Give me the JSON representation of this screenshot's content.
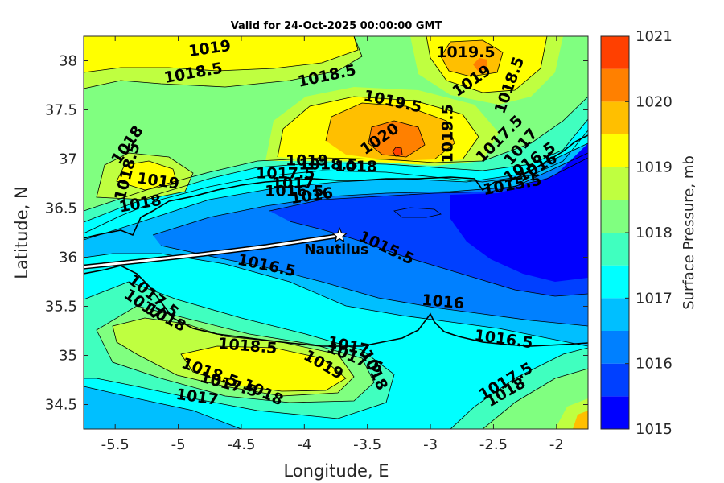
{
  "chart_data": {
    "type": "heatmap",
    "title": "Valid for 24-Oct-2025 00:00:00 GMT",
    "xlabel": "Longitude, E",
    "ylabel": "Latitude, N",
    "colorbar_label": "Surface Pressure, mb",
    "xlim": [
      -5.75,
      -1.75
    ],
    "ylim": [
      34.25,
      38.25
    ],
    "x_ticks": [
      -5.5,
      -5,
      -4.5,
      -4,
      -3.5,
      -3,
      -2.5,
      -2
    ],
    "x_tick_labels": [
      "-5.5",
      "-5",
      "-4.5",
      "-4",
      "-3.5",
      "-3",
      "-2.5",
      "-2"
    ],
    "y_ticks": [
      34.5,
      35,
      35.5,
      36,
      36.5,
      37,
      37.5,
      38
    ],
    "y_tick_labels": [
      "34.5",
      "35",
      "35.5",
      "36",
      "36.5",
      "37",
      "37.5",
      "38"
    ],
    "colorbar_range": [
      1015,
      1021
    ],
    "colorbar_levels": [
      1015,
      1015.5,
      1016,
      1016.5,
      1017,
      1017.5,
      1018,
      1018.5,
      1019,
      1019.5,
      1020,
      1020.5,
      1021
    ],
    "colorbar_colors": [
      "#0000ff",
      "#0040ff",
      "#0080ff",
      "#00bfff",
      "#00ffff",
      "#40ffbf",
      "#80ff80",
      "#bfff40",
      "#ffff00",
      "#ffbf00",
      "#ff8000",
      "#ff4000"
    ],
    "colorbar_tick_labels": [
      "1015",
      "1016",
      "1017",
      "1018",
      "1019",
      "1020",
      "1021"
    ],
    "colorbar_ticks": [
      1015,
      1016,
      1017,
      1018,
      1019,
      1020,
      1021
    ],
    "marker": {
      "label": "Nautilus",
      "lon": -3.72,
      "lat": 36.22
    },
    "track": [
      [
        -5.75,
        35.9
      ],
      [
        -5.3,
        35.96
      ],
      [
        -4.8,
        36.03
      ],
      [
        -4.3,
        36.11
      ],
      [
        -3.72,
        36.22
      ]
    ],
    "contour_labels": [
      {
        "text": "1019",
        "lon": -4.75,
        "lat": 38.12,
        "rot": -8
      },
      {
        "text": "1018.5",
        "lon": -4.88,
        "lat": 37.87,
        "rot": -10
      },
      {
        "text": "1018.5",
        "lon": -3.82,
        "lat": 37.84,
        "rot": -12
      },
      {
        "text": "1019.5",
        "lon": -2.72,
        "lat": 38.08,
        "rot": 0
      },
      {
        "text": "1019",
        "lon": -2.67,
        "lat": 37.79,
        "rot": -35
      },
      {
        "text": "1018.5",
        "lon": -2.37,
        "lat": 37.75,
        "rot": -70
      },
      {
        "text": "1019.5",
        "lon": -3.3,
        "lat": 37.58,
        "rot": 12
      },
      {
        "text": "1019.5",
        "lon": -2.86,
        "lat": 37.26,
        "rot": -90
      },
      {
        "text": "1020",
        "lon": -3.4,
        "lat": 37.2,
        "rot": -35
      },
      {
        "text": "1017.5",
        "lon": -2.45,
        "lat": 37.2,
        "rot": -45
      },
      {
        "text": "1017",
        "lon": -2.28,
        "lat": 37.12,
        "rot": -50
      },
      {
        "text": "1016.5",
        "lon": -2.21,
        "lat": 36.96,
        "rot": -35
      },
      {
        "text": "1016",
        "lon": -2.15,
        "lat": 36.91,
        "rot": -30
      },
      {
        "text": "1015.5",
        "lon": -2.35,
        "lat": 36.73,
        "rot": -10
      },
      {
        "text": "1018",
        "lon": -5.4,
        "lat": 37.14,
        "rot": -55
      },
      {
        "text": "1018.5",
        "lon": -5.4,
        "lat": 36.87,
        "rot": -75
      },
      {
        "text": "1019",
        "lon": -5.16,
        "lat": 36.77,
        "rot": 8
      },
      {
        "text": "1018",
        "lon": -5.3,
        "lat": 36.54,
        "rot": -10
      },
      {
        "text": "1019",
        "lon": -3.98,
        "lat": 36.98,
        "rot": 0
      },
      {
        "text": "1018.5",
        "lon": -3.81,
        "lat": 36.94,
        "rot": 0
      },
      {
        "text": "1018",
        "lon": -3.59,
        "lat": 36.92,
        "rot": 0
      },
      {
        "text": "1017.5",
        "lon": -4.15,
        "lat": 36.85,
        "rot": 0
      },
      {
        "text": "1017",
        "lon": -4.09,
        "lat": 36.75,
        "rot": 0
      },
      {
        "text": "1016.5",
        "lon": -4.08,
        "lat": 36.67,
        "rot": 0
      },
      {
        "text": "1016",
        "lon": -3.94,
        "lat": 36.62,
        "rot": -8
      },
      {
        "text": "1015.5",
        "lon": -3.35,
        "lat": 36.09,
        "rot": 25
      },
      {
        "text": "1016.5",
        "lon": -4.3,
        "lat": 35.91,
        "rot": 12
      },
      {
        "text": "1016",
        "lon": -2.9,
        "lat": 35.54,
        "rot": 5
      },
      {
        "text": "1017.5",
        "lon": -5.2,
        "lat": 35.6,
        "rot": 38
      },
      {
        "text": "1017",
        "lon": -5.28,
        "lat": 35.51,
        "rot": 35
      },
      {
        "text": "1018",
        "lon": -5.1,
        "lat": 35.38,
        "rot": 28
      },
      {
        "text": "1016.5",
        "lon": -2.42,
        "lat": 35.16,
        "rot": 8
      },
      {
        "text": "1017",
        "lon": -3.65,
        "lat": 35.09,
        "rot": 12
      },
      {
        "text": "1017.5",
        "lon": -3.6,
        "lat": 34.97,
        "rot": 22
      },
      {
        "text": "1018",
        "lon": -3.45,
        "lat": 34.85,
        "rot": 65
      },
      {
        "text": "1018.5",
        "lon": -4.45,
        "lat": 35.09,
        "rot": 5
      },
      {
        "text": "1019",
        "lon": -3.85,
        "lat": 34.9,
        "rot": 30
      },
      {
        "text": "1018.5",
        "lon": -4.75,
        "lat": 34.82,
        "rot": 20
      },
      {
        "text": "1017.5",
        "lon": -4.6,
        "lat": 34.7,
        "rot": 15
      },
      {
        "text": "1018",
        "lon": -4.33,
        "lat": 34.62,
        "rot": 25
      },
      {
        "text": "1017",
        "lon": -4.85,
        "lat": 34.57,
        "rot": 8
      },
      {
        "text": "1017.5",
        "lon": -2.4,
        "lat": 34.73,
        "rot": -30
      },
      {
        "text": "1018",
        "lon": -2.4,
        "lat": 34.62,
        "rot": -30
      }
    ]
  }
}
